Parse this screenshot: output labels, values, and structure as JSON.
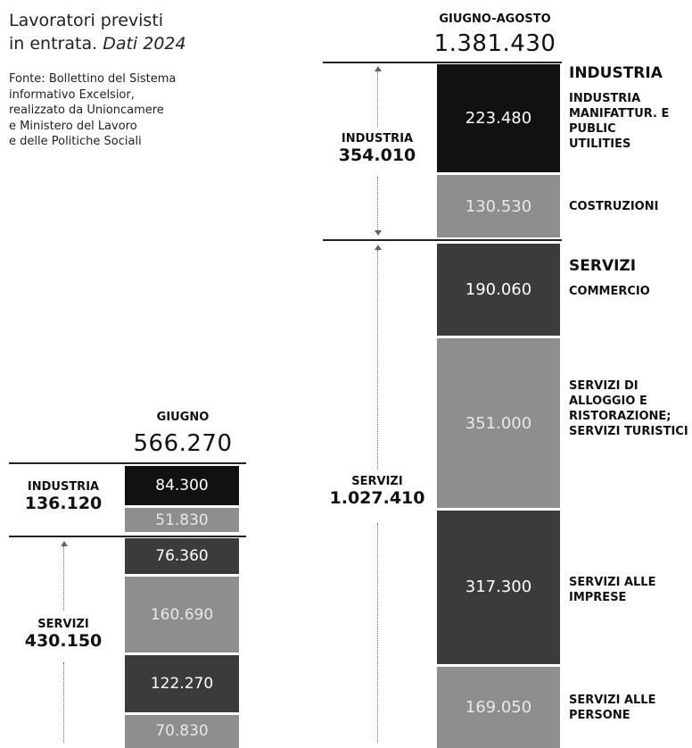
{
  "title": {
    "line1": "Lavoratori previsti",
    "line2a": "in entrata.",
    "line2b": "Dati 2024"
  },
  "source": [
    "Fonte: Bollettino del Sistema",
    "informativo Excelsior,",
    "realizzato da Unioncamere",
    "e Ministero del Lavoro",
    "e delle Politiche Sociali"
  ],
  "colors": {
    "black": "#111111",
    "dark": "#3b3b3b",
    "mid": "#8e8e8e",
    "rule": "#222222"
  },
  "chart_data": [
    {
      "type": "bar",
      "period": "GIUGNO",
      "total": "566.270",
      "groups": [
        {
          "name": "INDUSTRIA",
          "total": "136.120",
          "segments": [
            {
              "label": "84.300",
              "value": 84300,
              "shade": "black"
            },
            {
              "label": "51.830",
              "value": 51830,
              "shade": "mid"
            }
          ]
        },
        {
          "name": "SERVIZI",
          "total": "430.150",
          "segments": [
            {
              "label": "76.360",
              "value": 76360,
              "shade": "dark"
            },
            {
              "label": "160.690",
              "value": 160690,
              "shade": "mid"
            },
            {
              "label": "122.270",
              "value": 122270,
              "shade": "dark"
            },
            {
              "label": "70.830",
              "value": 70830,
              "shade": "mid"
            }
          ]
        }
      ]
    },
    {
      "type": "bar",
      "period": "GIUGNO-AGOSTO",
      "total": "1.381.430",
      "groups": [
        {
          "name": "INDUSTRIA",
          "total": "354.010",
          "segments": [
            {
              "label": "223.480",
              "value": 223480,
              "shade": "black"
            },
            {
              "label": "130.530",
              "value": 130530,
              "shade": "mid"
            }
          ]
        },
        {
          "name": "SERVIZI",
          "total": "1.027.410",
          "segments": [
            {
              "label": "190.060",
              "value": 190060,
              "shade": "dark"
            },
            {
              "label": "351.000",
              "value": 351000,
              "shade": "mid"
            },
            {
              "label": "317.300",
              "value": 317300,
              "shade": "dark"
            },
            {
              "label": "169.050",
              "value": 169050,
              "shade": "mid"
            }
          ]
        }
      ]
    }
  ],
  "categories": {
    "industria_title": "INDUSTRIA",
    "industria_items": [
      "INDUSTRIA MANIFATTUR. E PUBLIC UTILITIES",
      "COSTRUZIONI"
    ],
    "servizi_title": "SERVIZI",
    "servizi_items": [
      "COMMERCIO",
      "SERVIZI DI ALLOGGIO E RISTORAZIONE; SERVIZI TURISTICI",
      "SERVIZI ALLE IMPRESE",
      "SERVIZI ALLE PERSONE"
    ]
  }
}
